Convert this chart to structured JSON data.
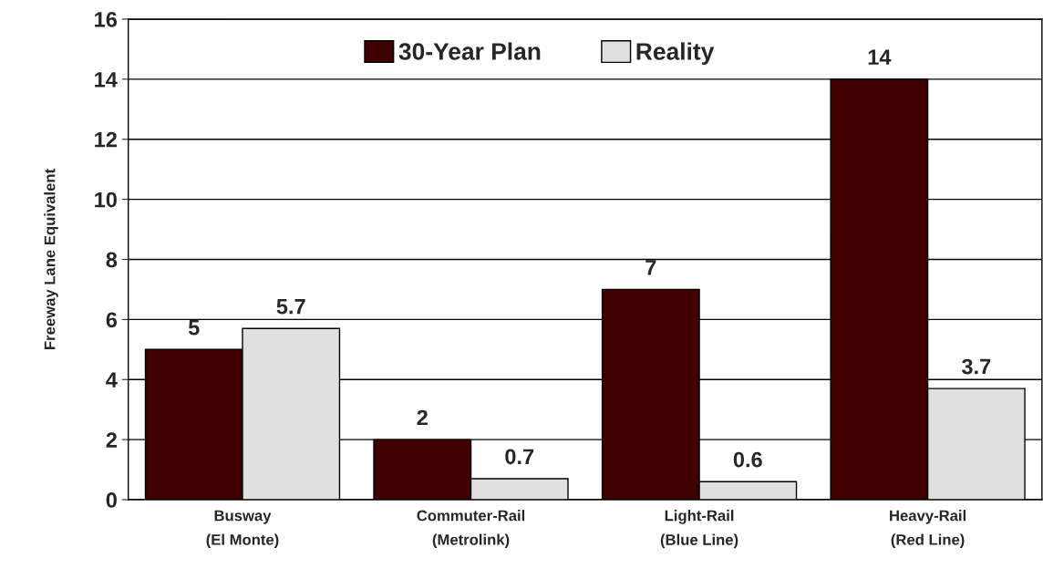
{
  "chart_data": {
    "type": "bar",
    "ylabel": "Freeway Lane Equivalent",
    "categories": [
      "Busway\n(El Monte)",
      "Commuter-Rail\n(Metrolink)",
      "Light-Rail\n(Blue Line)",
      "Heavy-Rail\n(Red Line)"
    ],
    "series": [
      {
        "name": "30-Year Plan",
        "color": "#400000",
        "values": [
          5,
          2,
          7,
          14
        ]
      },
      {
        "name": "Reality",
        "color": "#e0e0e0",
        "values": [
          5.7,
          0.7,
          0.6,
          3.7
        ]
      }
    ],
    "ylim": [
      0,
      16
    ],
    "yticks": [
      0,
      2,
      4,
      6,
      8,
      10,
      12,
      14,
      16
    ],
    "grid": "y",
    "legend": "top",
    "data_labels": true
  }
}
